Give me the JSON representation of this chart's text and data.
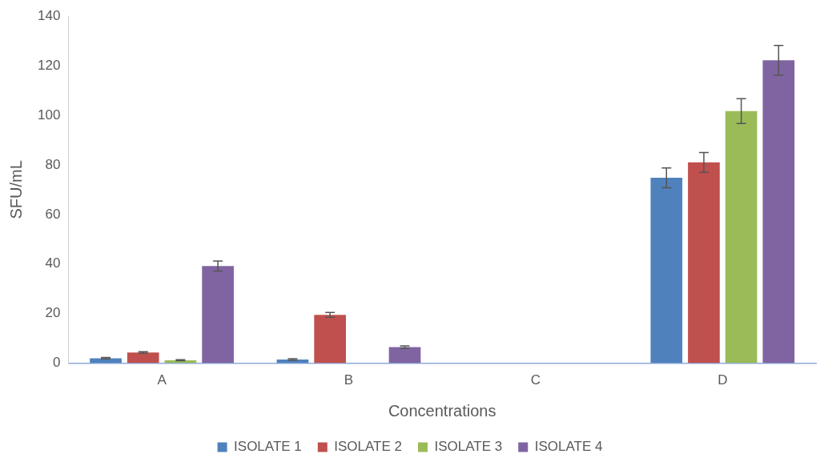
{
  "chart_data": {
    "type": "bar",
    "xlabel": "Concentrations",
    "ylabel": "SFU/mL",
    "categories": [
      "A",
      "B",
      "C",
      "D"
    ],
    "series": [
      {
        "name": "ISOLATE 1",
        "color": "#4f81bd",
        "values": [
          2.0,
          1.5,
          0,
          74.8
        ],
        "errors": [
          0.3,
          0.3,
          null,
          4
        ]
      },
      {
        "name": "ISOLATE 2",
        "color": "#c0504d",
        "values": [
          4.3,
          19.5,
          0,
          81
        ],
        "errors": [
          0.3,
          1,
          null,
          4
        ]
      },
      {
        "name": "ISOLATE 3",
        "color": "#9bbb59",
        "values": [
          1.2,
          0,
          0,
          101.7
        ],
        "errors": [
          0.2,
          null,
          null,
          5
        ]
      },
      {
        "name": "ISOLATE 4",
        "color": "#8064a2",
        "values": [
          39.2,
          6.5,
          0,
          122.2
        ],
        "errors": [
          2,
          0.5,
          null,
          6
        ]
      }
    ],
    "ylim": [
      0,
      140
    ],
    "yticks": [
      0,
      20,
      40,
      60,
      80,
      100,
      120,
      140
    ],
    "grid": false,
    "legend": "bottom"
  }
}
